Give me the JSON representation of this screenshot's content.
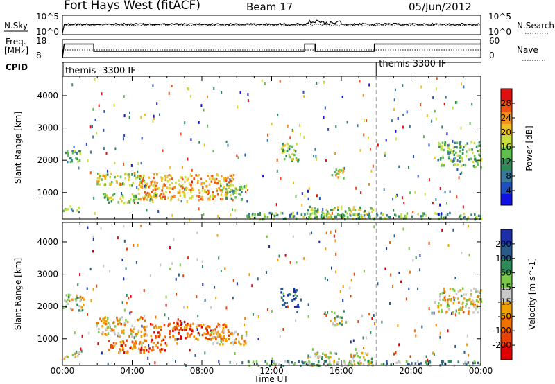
{
  "header": {
    "title": "Fort Hays West (fitACF)",
    "beam": "Beam 17",
    "date": "05/Jun/2012"
  },
  "noise_panel": {
    "left_label": "N.Sky",
    "left_ticks": [
      "10^5",
      "10^0"
    ],
    "right_ticks": [
      "10^5",
      "10^0"
    ],
    "right_label": "N.Search"
  },
  "freq_panel": {
    "left_label_line1": "Freq.",
    "left_label_line2": "[MHz]",
    "left_ticks": [
      "18",
      "8"
    ],
    "right_ticks": [
      "60",
      "0"
    ],
    "right_label": "Nave"
  },
  "cpid": {
    "label": "CPID",
    "segments": [
      {
        "start_hour": 0,
        "name": "themis -3300 IF"
      },
      {
        "start_hour": 18,
        "name": "themis 3300 IF"
      }
    ]
  },
  "colors": {
    "power_scale": [
      "#1010e0",
      "#2050c0",
      "#3a7a9a",
      "#2e8b57",
      "#5fbf4f",
      "#c8e040",
      "#f0c020",
      "#f09020",
      "#f05010",
      "#e01010"
    ],
    "velocity_scale": [
      "#1c2fa8",
      "#2a5a8a",
      "#2f8a5a",
      "#7cc84a",
      "#c8c8c8",
      "#f0a000",
      "#f07000",
      "#e84000",
      "#e00000"
    ],
    "freq_line": "#000000"
  },
  "chart_data": [
    {
      "type": "heatmap",
      "panel": "power",
      "xlabel": "",
      "ylabel": "Slant Range [km]",
      "x_range_hours": [
        0,
        24
      ],
      "ylim": [
        180,
        4600
      ],
      "y_ticks": [
        "4000",
        "3000",
        "2000",
        "1000"
      ],
      "colorbar": {
        "label": "Power [dB]",
        "range": [
          0,
          32
        ],
        "ticks": [
          "28",
          "24",
          "20",
          "16",
          "12",
          "8",
          "4"
        ]
      },
      "echo_regions": [
        {
          "x": [
            0.0,
            1.0
          ],
          "range_km": [
            1950,
            2350
          ],
          "level": 0.4
        },
        {
          "x": [
            0.0,
            1.0
          ],
          "range_km": [
            420,
            620
          ],
          "level": 0.45
        },
        {
          "x": [
            1.9,
            4.7
          ],
          "range_km": [
            1250,
            1650
          ],
          "level": 0.55
        },
        {
          "x": [
            2.3,
            5.3
          ],
          "range_km": [
            700,
            1000
          ],
          "level": 0.5
        },
        {
          "x": [
            4.3,
            9.8
          ],
          "range_km": [
            800,
            1600
          ],
          "level": 0.7
        },
        {
          "x": [
            9.0,
            10.5
          ],
          "range_km": [
            800,
            1300
          ],
          "level": 0.45
        },
        {
          "x": [
            12.5,
            13.5
          ],
          "range_km": [
            2000,
            2600
          ],
          "level": 0.5
        },
        {
          "x": [
            14.0,
            17.8
          ],
          "range_km": [
            200,
            600
          ],
          "level": 0.5
        },
        {
          "x": [
            15.3,
            16.1
          ],
          "range_km": [
            1450,
            1800
          ],
          "level": 0.6
        },
        {
          "x": [
            21.5,
            24.0
          ],
          "range_km": [
            1800,
            2600
          ],
          "level": 0.4
        },
        {
          "x": [
            10.5,
            24.0
          ],
          "range_km": [
            200,
            400
          ],
          "level": 0.4
        }
      ]
    },
    {
      "type": "heatmap",
      "panel": "velocity",
      "xlabel": "Time UT",
      "ylabel": "Slant Range [km]",
      "x_range_hours": [
        0,
        24
      ],
      "x_ticks": [
        "00:00",
        "04:00",
        "08:00",
        "12:00",
        "16:00",
        "20:00",
        "00:00"
      ],
      "ylim": [
        180,
        4600
      ],
      "y_ticks": [
        "4000",
        "3000",
        "2000",
        "1000"
      ],
      "colorbar": {
        "label": "Velocity [m s^-1]",
        "ticks": [
          "200",
          "100",
          "50",
          "15",
          "-15",
          "-50",
          "-100",
          "-200"
        ]
      },
      "echo_regions": [
        {
          "x": [
            0.0,
            1.2
          ],
          "range_km": [
            1900,
            2400
          ],
          "level": 0.5
        },
        {
          "x": [
            0.0,
            1.0
          ],
          "range_km": [
            420,
            620
          ],
          "level": 0.5
        },
        {
          "x": [
            1.9,
            4.8
          ],
          "range_km": [
            1100,
            1700
          ],
          "level": 0.6
        },
        {
          "x": [
            2.5,
            6.0
          ],
          "range_km": [
            600,
            1000
          ],
          "level": 0.75
        },
        {
          "x": [
            5.0,
            9.5
          ],
          "range_km": [
            1000,
            1500
          ],
          "level": 0.75
        },
        {
          "x": [
            6.0,
            7.0
          ],
          "range_km": [
            1300,
            1650
          ],
          "level": 0.9
        },
        {
          "x": [
            8.5,
            10.5
          ],
          "range_km": [
            850,
            1300
          ],
          "level": 0.6
        },
        {
          "x": [
            12.5,
            13.5
          ],
          "range_km": [
            2000,
            2600
          ],
          "level": 0.15
        },
        {
          "x": [
            14.0,
            17.8
          ],
          "range_km": [
            200,
            600
          ],
          "level": 0.45
        },
        {
          "x": [
            15.3,
            16.1
          ],
          "range_km": [
            1450,
            1900
          ],
          "level": 0.45
        },
        {
          "x": [
            21.5,
            24.0
          ],
          "range_km": [
            1800,
            2600
          ],
          "level": 0.5
        },
        {
          "x": [
            10.5,
            24.0
          ],
          "range_km": [
            200,
            350
          ],
          "level": 0.35
        }
      ]
    },
    {
      "type": "line",
      "panel": "frequency",
      "ylabel": "Freq. [MHz]",
      "ylim": [
        8,
        18
      ],
      "series": [
        {
          "x": [
            0.0,
            0.1,
            1.8,
            1.8,
            13.9,
            13.9,
            14.5,
            14.5,
            17.9,
            17.9,
            24.0
          ],
          "values": [
            8,
            15.5,
            15.5,
            11.5,
            11.5,
            15.5,
            15.5,
            11.5,
            11.5,
            15.5,
            15.5
          ]
        }
      ]
    }
  ]
}
